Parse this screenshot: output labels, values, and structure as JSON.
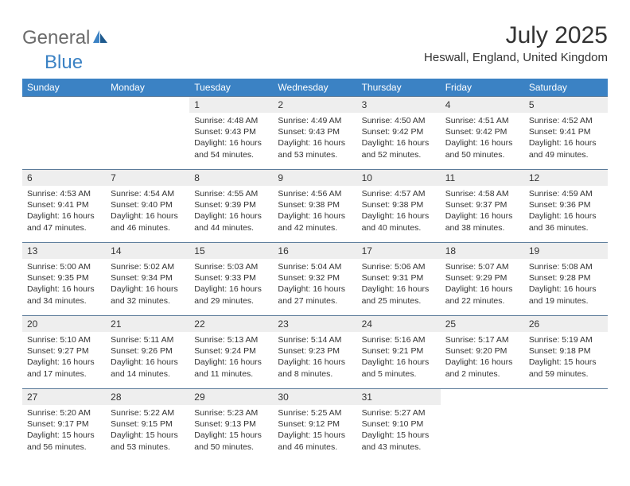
{
  "logo": {
    "word1": "General",
    "word2": "Blue"
  },
  "title": "July 2025",
  "location": "Heswall, England, United Kingdom",
  "colors": {
    "header_bg": "#3b82c4",
    "header_text": "#ffffff",
    "daynum_bg": "#eeeeee",
    "border": "#5a7a99",
    "text": "#333333",
    "logo_gray": "#6b6b6b",
    "logo_blue": "#3b82c4"
  },
  "daysOfWeek": [
    "Sunday",
    "Monday",
    "Tuesday",
    "Wednesday",
    "Thursday",
    "Friday",
    "Saturday"
  ],
  "weeks": [
    {
      "nums": [
        "",
        "",
        "1",
        "2",
        "3",
        "4",
        "5"
      ],
      "data": [
        null,
        null,
        {
          "sunrise": "Sunrise: 4:48 AM",
          "sunset": "Sunset: 9:43 PM",
          "day1": "Daylight: 16 hours",
          "day2": "and 54 minutes."
        },
        {
          "sunrise": "Sunrise: 4:49 AM",
          "sunset": "Sunset: 9:43 PM",
          "day1": "Daylight: 16 hours",
          "day2": "and 53 minutes."
        },
        {
          "sunrise": "Sunrise: 4:50 AM",
          "sunset": "Sunset: 9:42 PM",
          "day1": "Daylight: 16 hours",
          "day2": "and 52 minutes."
        },
        {
          "sunrise": "Sunrise: 4:51 AM",
          "sunset": "Sunset: 9:42 PM",
          "day1": "Daylight: 16 hours",
          "day2": "and 50 minutes."
        },
        {
          "sunrise": "Sunrise: 4:52 AM",
          "sunset": "Sunset: 9:41 PM",
          "day1": "Daylight: 16 hours",
          "day2": "and 49 minutes."
        }
      ]
    },
    {
      "nums": [
        "6",
        "7",
        "8",
        "9",
        "10",
        "11",
        "12"
      ],
      "data": [
        {
          "sunrise": "Sunrise: 4:53 AM",
          "sunset": "Sunset: 9:41 PM",
          "day1": "Daylight: 16 hours",
          "day2": "and 47 minutes."
        },
        {
          "sunrise": "Sunrise: 4:54 AM",
          "sunset": "Sunset: 9:40 PM",
          "day1": "Daylight: 16 hours",
          "day2": "and 46 minutes."
        },
        {
          "sunrise": "Sunrise: 4:55 AM",
          "sunset": "Sunset: 9:39 PM",
          "day1": "Daylight: 16 hours",
          "day2": "and 44 minutes."
        },
        {
          "sunrise": "Sunrise: 4:56 AM",
          "sunset": "Sunset: 9:38 PM",
          "day1": "Daylight: 16 hours",
          "day2": "and 42 minutes."
        },
        {
          "sunrise": "Sunrise: 4:57 AM",
          "sunset": "Sunset: 9:38 PM",
          "day1": "Daylight: 16 hours",
          "day2": "and 40 minutes."
        },
        {
          "sunrise": "Sunrise: 4:58 AM",
          "sunset": "Sunset: 9:37 PM",
          "day1": "Daylight: 16 hours",
          "day2": "and 38 minutes."
        },
        {
          "sunrise": "Sunrise: 4:59 AM",
          "sunset": "Sunset: 9:36 PM",
          "day1": "Daylight: 16 hours",
          "day2": "and 36 minutes."
        }
      ]
    },
    {
      "nums": [
        "13",
        "14",
        "15",
        "16",
        "17",
        "18",
        "19"
      ],
      "data": [
        {
          "sunrise": "Sunrise: 5:00 AM",
          "sunset": "Sunset: 9:35 PM",
          "day1": "Daylight: 16 hours",
          "day2": "and 34 minutes."
        },
        {
          "sunrise": "Sunrise: 5:02 AM",
          "sunset": "Sunset: 9:34 PM",
          "day1": "Daylight: 16 hours",
          "day2": "and 32 minutes."
        },
        {
          "sunrise": "Sunrise: 5:03 AM",
          "sunset": "Sunset: 9:33 PM",
          "day1": "Daylight: 16 hours",
          "day2": "and 29 minutes."
        },
        {
          "sunrise": "Sunrise: 5:04 AM",
          "sunset": "Sunset: 9:32 PM",
          "day1": "Daylight: 16 hours",
          "day2": "and 27 minutes."
        },
        {
          "sunrise": "Sunrise: 5:06 AM",
          "sunset": "Sunset: 9:31 PM",
          "day1": "Daylight: 16 hours",
          "day2": "and 25 minutes."
        },
        {
          "sunrise": "Sunrise: 5:07 AM",
          "sunset": "Sunset: 9:29 PM",
          "day1": "Daylight: 16 hours",
          "day2": "and 22 minutes."
        },
        {
          "sunrise": "Sunrise: 5:08 AM",
          "sunset": "Sunset: 9:28 PM",
          "day1": "Daylight: 16 hours",
          "day2": "and 19 minutes."
        }
      ]
    },
    {
      "nums": [
        "20",
        "21",
        "22",
        "23",
        "24",
        "25",
        "26"
      ],
      "data": [
        {
          "sunrise": "Sunrise: 5:10 AM",
          "sunset": "Sunset: 9:27 PM",
          "day1": "Daylight: 16 hours",
          "day2": "and 17 minutes."
        },
        {
          "sunrise": "Sunrise: 5:11 AM",
          "sunset": "Sunset: 9:26 PM",
          "day1": "Daylight: 16 hours",
          "day2": "and 14 minutes."
        },
        {
          "sunrise": "Sunrise: 5:13 AM",
          "sunset": "Sunset: 9:24 PM",
          "day1": "Daylight: 16 hours",
          "day2": "and 11 minutes."
        },
        {
          "sunrise": "Sunrise: 5:14 AM",
          "sunset": "Sunset: 9:23 PM",
          "day1": "Daylight: 16 hours",
          "day2": "and 8 minutes."
        },
        {
          "sunrise": "Sunrise: 5:16 AM",
          "sunset": "Sunset: 9:21 PM",
          "day1": "Daylight: 16 hours",
          "day2": "and 5 minutes."
        },
        {
          "sunrise": "Sunrise: 5:17 AM",
          "sunset": "Sunset: 9:20 PM",
          "day1": "Daylight: 16 hours",
          "day2": "and 2 minutes."
        },
        {
          "sunrise": "Sunrise: 5:19 AM",
          "sunset": "Sunset: 9:18 PM",
          "day1": "Daylight: 15 hours",
          "day2": "and 59 minutes."
        }
      ]
    },
    {
      "nums": [
        "27",
        "28",
        "29",
        "30",
        "31",
        "",
        ""
      ],
      "data": [
        {
          "sunrise": "Sunrise: 5:20 AM",
          "sunset": "Sunset: 9:17 PM",
          "day1": "Daylight: 15 hours",
          "day2": "and 56 minutes."
        },
        {
          "sunrise": "Sunrise: 5:22 AM",
          "sunset": "Sunset: 9:15 PM",
          "day1": "Daylight: 15 hours",
          "day2": "and 53 minutes."
        },
        {
          "sunrise": "Sunrise: 5:23 AM",
          "sunset": "Sunset: 9:13 PM",
          "day1": "Daylight: 15 hours",
          "day2": "and 50 minutes."
        },
        {
          "sunrise": "Sunrise: 5:25 AM",
          "sunset": "Sunset: 9:12 PM",
          "day1": "Daylight: 15 hours",
          "day2": "and 46 minutes."
        },
        {
          "sunrise": "Sunrise: 5:27 AM",
          "sunset": "Sunset: 9:10 PM",
          "day1": "Daylight: 15 hours",
          "day2": "and 43 minutes."
        },
        null,
        null
      ]
    }
  ]
}
